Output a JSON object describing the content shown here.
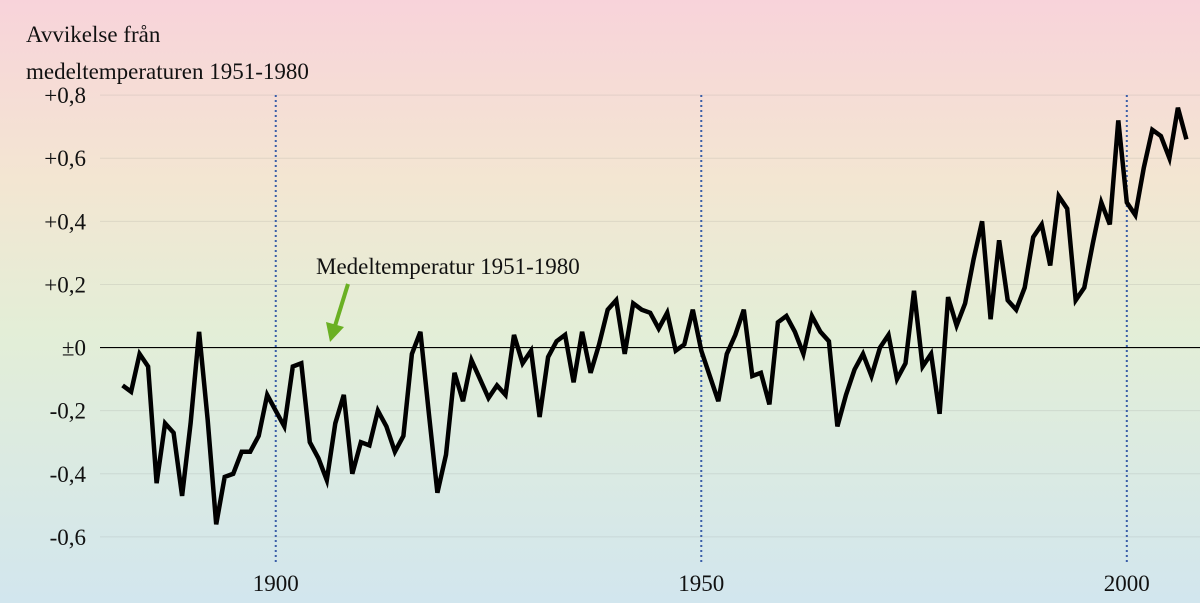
{
  "chart_data": {
    "type": "line",
    "title": [
      "Avvikelse från",
      "medeltemperaturen 1951-1980"
    ],
    "annotation": "Medeltemperatur 1951-1980",
    "x": [
      1882,
      1883,
      1884,
      1885,
      1886,
      1887,
      1888,
      1889,
      1890,
      1891,
      1892,
      1893,
      1894,
      1895,
      1896,
      1897,
      1898,
      1899,
      1900,
      1901,
      1902,
      1903,
      1904,
      1905,
      1906,
      1907,
      1908,
      1909,
      1910,
      1911,
      1912,
      1913,
      1914,
      1915,
      1916,
      1917,
      1918,
      1919,
      1920,
      1921,
      1922,
      1923,
      1924,
      1925,
      1926,
      1927,
      1928,
      1929,
      1930,
      1931,
      1932,
      1933,
      1934,
      1935,
      1936,
      1937,
      1938,
      1939,
      1940,
      1941,
      1942,
      1943,
      1944,
      1945,
      1946,
      1947,
      1948,
      1949,
      1950,
      1951,
      1952,
      1953,
      1954,
      1955,
      1956,
      1957,
      1958,
      1959,
      1960,
      1961,
      1962,
      1963,
      1964,
      1965,
      1966,
      1967,
      1968,
      1969,
      1970,
      1971,
      1972,
      1973,
      1974,
      1975,
      1976,
      1977,
      1978,
      1979,
      1980,
      1981,
      1982,
      1983,
      1984,
      1985,
      1986,
      1987,
      1988,
      1989,
      1990,
      1991,
      1992,
      1993,
      1994,
      1995,
      1996,
      1997,
      1998,
      1999,
      2000,
      2001,
      2002,
      2003,
      2004,
      2005,
      2006,
      2007
    ],
    "series": [
      {
        "color": "#000000",
        "values": [
          -0.12,
          -0.14,
          -0.02,
          -0.06,
          -0.43,
          -0.24,
          -0.27,
          -0.47,
          -0.24,
          0.05,
          -0.23,
          -0.56,
          -0.41,
          -0.4,
          -0.33,
          -0.33,
          -0.28,
          -0.15,
          -0.2,
          -0.25,
          -0.06,
          -0.05,
          -0.3,
          -0.35,
          -0.42,
          -0.24,
          -0.15,
          -0.4,
          -0.3,
          -0.31,
          -0.2,
          -0.25,
          -0.33,
          -0.28,
          -0.02,
          0.05,
          -0.21,
          -0.46,
          -0.34,
          -0.08,
          -0.17,
          -0.04,
          -0.1,
          -0.16,
          -0.12,
          -0.15,
          0.04,
          -0.05,
          -0.01,
          -0.22,
          -0.03,
          0.02,
          0.04,
          -0.11,
          0.05,
          -0.08,
          0.01,
          0.12,
          0.15,
          -0.02,
          0.14,
          0.12,
          0.11,
          0.06,
          0.11,
          -0.01,
          0.01,
          0.12,
          -0.01,
          -0.09,
          -0.17,
          -0.02,
          0.04,
          0.12,
          -0.09,
          -0.08,
          -0.18,
          0.08,
          0.1,
          0.05,
          -0.02,
          0.1,
          0.05,
          0.02,
          -0.25,
          -0.15,
          -0.07,
          -0.02,
          -0.09,
          0.0,
          0.04,
          -0.1,
          -0.05,
          0.18,
          -0.06,
          -0.02,
          -0.21,
          0.16,
          0.07,
          0.14,
          0.28,
          0.4,
          0.09,
          0.34,
          0.15,
          0.12,
          0.19,
          0.35,
          0.39,
          0.26,
          0.48,
          0.44,
          0.15,
          0.19,
          0.33,
          0.46,
          0.39,
          0.72,
          0.46,
          0.42,
          0.57,
          0.69,
          0.67,
          0.6,
          0.76,
          0.66
        ]
      }
    ],
    "xlim": [
      1867.6,
      2008.6
    ],
    "xticks": [
      1900,
      1950,
      2000
    ],
    "ylim": [
      -0.8,
      1.0
    ],
    "yticks": [
      {
        "value": 0.8,
        "label": "+0,8"
      },
      {
        "value": 0.6,
        "label": "+0,6"
      },
      {
        "value": 0.4,
        "label": "+0,4"
      },
      {
        "value": 0.2,
        "label": "+0,2"
      },
      {
        "value": 0,
        "label": "±0"
      },
      {
        "value": -0.2,
        "label": "-0,2"
      },
      {
        "value": -0.4,
        "label": "-0,4"
      },
      {
        "value": -0.6,
        "label": "-0,6"
      }
    ],
    "annotation_arrow_color": "#6ab023",
    "xgrid_color": "#3a5ea8"
  }
}
